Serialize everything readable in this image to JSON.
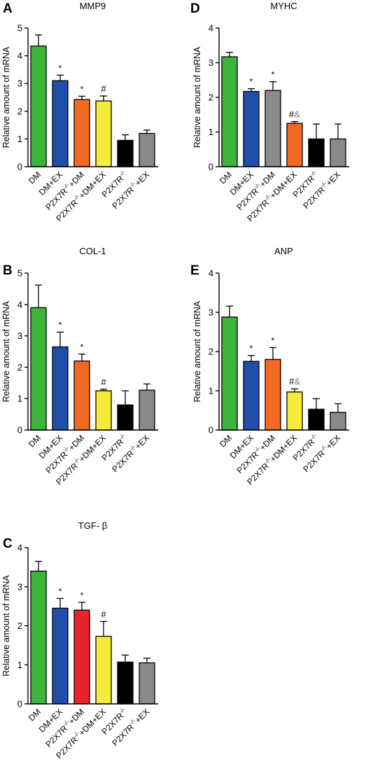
{
  "category_labels": [
    {
      "base": "DM",
      "sup": "",
      "tail": ""
    },
    {
      "base": "DM+EX",
      "sup": "",
      "tail": ""
    },
    {
      "base": "P2X7R",
      "sup": "-/-",
      "tail": "+DM"
    },
    {
      "base": "P2X7R",
      "sup": "-/-",
      "tail": "+DM+EX"
    },
    {
      "base": "P2X7R",
      "sup": "-/-",
      "tail": ""
    },
    {
      "base": "P2X7R",
      "sup": "-/-",
      "tail": "+EX"
    }
  ],
  "chart_data": [
    {
      "panel": "A",
      "type": "bar",
      "title": "MMP9",
      "ylabel": "Relative amount of mRNA",
      "ylim": [
        0,
        5
      ],
      "yticks": [
        0,
        1,
        2,
        3,
        4,
        5
      ],
      "categories": [
        "DM",
        "DM+EX",
        "P2X7R-/-+DM",
        "P2X7R-/-+DM+EX",
        "P2X7R-/-",
        "P2X7R-/-+EX"
      ],
      "values": [
        4.35,
        3.1,
        2.42,
        2.37,
        0.95,
        1.2
      ],
      "errors": [
        0.4,
        0.2,
        0.12,
        0.18,
        0.2,
        0.12
      ],
      "colors": [
        "#3cb53c",
        "#1f4fa8",
        "#f26a21",
        "#f5ed3a",
        "#000000",
        "#8a8a8a"
      ],
      "annotations": [
        "",
        "*",
        "*",
        "#",
        "",
        ""
      ]
    },
    {
      "panel": "B",
      "type": "bar",
      "title": "COL-1",
      "ylabel": "Relative amount of mRNA",
      "ylim": [
        0,
        5
      ],
      "yticks": [
        0,
        1,
        2,
        3,
        4,
        5
      ],
      "categories": [
        "DM",
        "DM+EX",
        "P2X7R-/-+DM",
        "P2X7R-/-+DM+EX",
        "P2X7R-/-",
        "P2X7R-/-+EX"
      ],
      "values": [
        3.9,
        2.65,
        2.2,
        1.25,
        0.8,
        1.27
      ],
      "errors": [
        0.72,
        0.47,
        0.22,
        0.05,
        0.45,
        0.2
      ],
      "colors": [
        "#3cb53c",
        "#1f4fa8",
        "#f26a21",
        "#f5ed3a",
        "#000000",
        "#8a8a8a"
      ],
      "annotations": [
        "",
        "*",
        "*",
        "#",
        "",
        ""
      ]
    },
    {
      "panel": "C",
      "type": "bar",
      "title": "TGF- β",
      "ylabel": "Relative amount of mRNA",
      "ylim": [
        0,
        4
      ],
      "yticks": [
        0,
        1,
        2,
        3,
        4
      ],
      "categories": [
        "DM",
        "DM+EX",
        "P2X7R-/-+DM",
        "P2X7R-/-+DM+EX",
        "P2X7R-/-",
        "P2X7R-/-+EX"
      ],
      "values": [
        3.4,
        2.45,
        2.4,
        1.73,
        1.07,
        1.05
      ],
      "errors": [
        0.25,
        0.25,
        0.2,
        0.38,
        0.18,
        0.12
      ],
      "colors": [
        "#3cb53c",
        "#1f4fa8",
        "#e8242a",
        "#f5ed3a",
        "#000000",
        "#8a8a8a"
      ],
      "annotations": [
        "",
        "*",
        "*",
        "#",
        "",
        ""
      ]
    },
    {
      "panel": "D",
      "type": "bar",
      "title": "MYHC",
      "ylabel": "Relative amount of mRNA",
      "ylim": [
        0,
        4
      ],
      "yticks": [
        0,
        1,
        2,
        3,
        4
      ],
      "categories": [
        "DM",
        "DM+EX",
        "P2X7R-/-+DM",
        "P2X7R-/-+DM+EX",
        "P2X7R-/-",
        "P2X7R-/-+EX"
      ],
      "values": [
        3.17,
        2.17,
        2.2,
        1.25,
        0.8,
        0.8
      ],
      "errors": [
        0.13,
        0.08,
        0.25,
        0.05,
        0.43,
        0.43
      ],
      "colors": [
        "#3cb53c",
        "#1f4fa8",
        "#8a8a8a",
        "#f26a21",
        "#000000",
        "#8a8a8a"
      ],
      "annotations": [
        "",
        "*",
        "*",
        "#&",
        "",
        ""
      ]
    },
    {
      "panel": "E",
      "type": "bar",
      "title": "ANP",
      "ylabel": "Relative amount of mRNA",
      "ylim": [
        0,
        4
      ],
      "yticks": [
        0,
        1,
        2,
        3,
        4
      ],
      "categories": [
        "DM",
        "DM+EX",
        "P2X7R-/-+DM",
        "P2X7R-/-+DM+EX",
        "P2X7R-/-",
        "P2X7R-/-+EX"
      ],
      "values": [
        2.88,
        1.75,
        1.8,
        0.97,
        0.53,
        0.45
      ],
      "errors": [
        0.28,
        0.15,
        0.3,
        0.08,
        0.27,
        0.22
      ],
      "colors": [
        "#3cb53c",
        "#1f4fa8",
        "#f26a21",
        "#f5ed3a",
        "#000000",
        "#8a8a8a"
      ],
      "annotations": [
        "",
        "*",
        "*",
        "#&",
        "",
        ""
      ]
    }
  ]
}
